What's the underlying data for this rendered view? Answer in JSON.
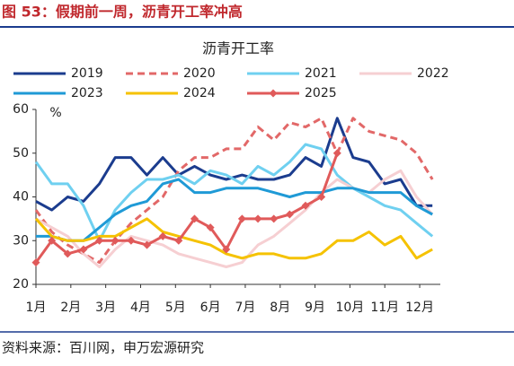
{
  "chart_data": {
    "type": "line",
    "title": "图 53：假期前一周，沥青开工率冲高",
    "subtitle": "沥青开工率",
    "y_unit": "%",
    "source": "资料来源：百川网，申万宏源研究",
    "x": [
      1,
      3,
      5,
      7,
      9,
      11,
      13,
      15,
      17,
      19,
      21,
      23,
      25,
      27,
      29,
      31,
      33,
      35,
      37,
      39,
      41,
      43,
      45,
      47,
      49,
      51
    ],
    "xlim": [
      1,
      52
    ],
    "xticks": [
      {
        "value": 1,
        "label": "1月"
      },
      {
        "value": 5.4,
        "label": "2月"
      },
      {
        "value": 9.8,
        "label": "3月"
      },
      {
        "value": 14.2,
        "label": "4月"
      },
      {
        "value": 18.6,
        "label": "5月"
      },
      {
        "value": 23,
        "label": "6月"
      },
      {
        "value": 27.4,
        "label": "7月"
      },
      {
        "value": 31.8,
        "label": "8月"
      },
      {
        "value": 36.2,
        "label": "9月"
      },
      {
        "value": 40.6,
        "label": "10月"
      },
      {
        "value": 45,
        "label": "11月"
      },
      {
        "value": 49.4,
        "label": "12月"
      }
    ],
    "ylim": [
      20,
      60
    ],
    "yticks": [
      20,
      30,
      40,
      50,
      60
    ],
    "series": [
      {
        "name": "2019",
        "color": "#1b3c8e",
        "values": [
          39,
          37,
          40,
          39,
          43,
          49,
          49,
          45,
          49,
          45,
          47,
          45,
          44,
          45,
          44,
          44,
          45,
          49,
          47,
          58,
          49,
          48,
          43,
          44,
          38,
          38
        ]
      },
      {
        "name": "2020",
        "color": "#e26868",
        "dash": true,
        "values": [
          37,
          32,
          29,
          27,
          25,
          30,
          34,
          37,
          40,
          46,
          49,
          49,
          51,
          51,
          56,
          53,
          57,
          56,
          58,
          50,
          58,
          55,
          54,
          53,
          50,
          44
        ]
      },
      {
        "name": "2021",
        "color": "#6fd0f0",
        "values": [
          48,
          43,
          43,
          38,
          30,
          37,
          41,
          44,
          44,
          45,
          43,
          46,
          45,
          43,
          47,
          45,
          48,
          52,
          51,
          45,
          42,
          40,
          38,
          37,
          34,
          31
        ]
      },
      {
        "name": "2022",
        "color": "#f6cfd2",
        "values": [
          35,
          33,
          31,
          27,
          24,
          28,
          31,
          30,
          29,
          27,
          26,
          25,
          24,
          25,
          29,
          31,
          34,
          37,
          41,
          44,
          42,
          41,
          44,
          46,
          40,
          36
        ]
      },
      {
        "name": "2023",
        "color": "#1f9ad6",
        "values": [
          31,
          31,
          30,
          30,
          33,
          36,
          38,
          39,
          43,
          44,
          41,
          41,
          42,
          42,
          42,
          41,
          40,
          41,
          41,
          42,
          42,
          41,
          41,
          41,
          38,
          36
        ]
      },
      {
        "name": "2024",
        "color": "#f5c200",
        "values": [
          35,
          31,
          30,
          30,
          31,
          31,
          33,
          35,
          32,
          31,
          30,
          29,
          27,
          26,
          27,
          27,
          26,
          26,
          27,
          30,
          30,
          32,
          29,
          31,
          26,
          28
        ]
      },
      {
        "name": "2025",
        "color": "#e05a5a",
        "marker": "diamond",
        "values": [
          25,
          30,
          27,
          28,
          30,
          30,
          30,
          29,
          31,
          30,
          35,
          33,
          28,
          35,
          35,
          35,
          36,
          38,
          40,
          50,
          null,
          null,
          null,
          null,
          null,
          null
        ]
      }
    ]
  }
}
